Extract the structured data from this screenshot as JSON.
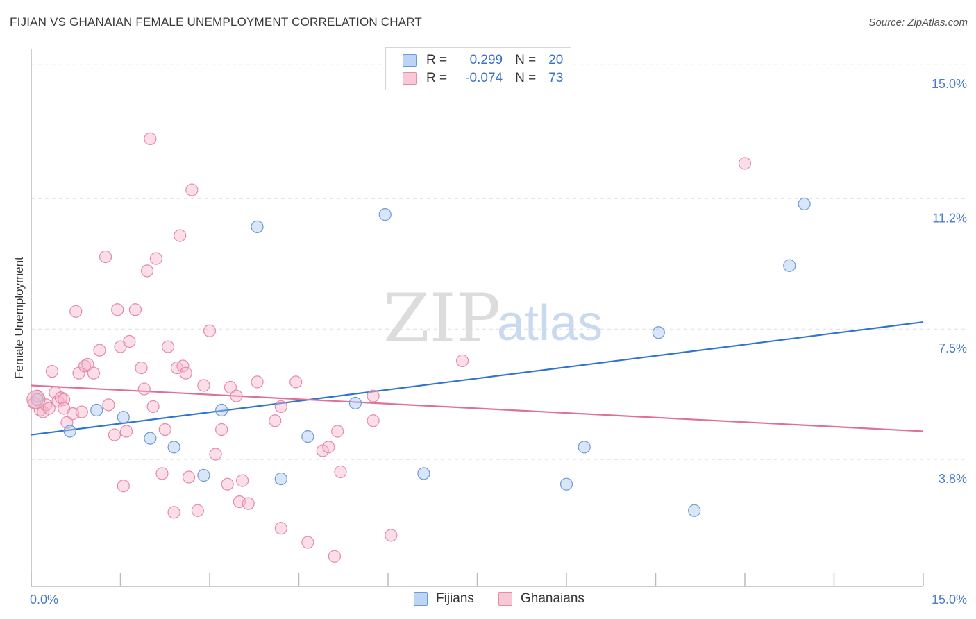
{
  "header": {
    "title": "FIJIAN VS GHANAIAN FEMALE UNEMPLOYMENT CORRELATION CHART",
    "source": "Source: ZipAtlas.com"
  },
  "legend": {
    "rows": [
      {
        "r_label": "R =",
        "r_value": "0.299",
        "n_label": "N =",
        "n_value": "20",
        "color": "#a9c8f0"
      },
      {
        "r_label": "R =",
        "r_value": "-0.074",
        "n_label": "N =",
        "n_value": "73",
        "color": "#f7b6ca"
      }
    ]
  },
  "watermark": {
    "zip": "ZIP",
    "atlas": "atlas"
  },
  "colors": {
    "fijians_fill": "#a9c8f0",
    "fijians_stroke": "#6a9ad9",
    "fijians_line": "#2f74d0",
    "ghanaians_fill": "#f7b6ca",
    "ghanaians_stroke": "#e58aa8",
    "ghanaians_line": "#e0709a",
    "tick_text": "#4a7cc9",
    "grid": "#dddddd"
  },
  "chart_data": {
    "type": "scatter",
    "title": "FIJIAN VS GHANAIAN FEMALE UNEMPLOYMENT CORRELATION CHART",
    "xlabel": "",
    "ylabel": "Female Unemployment",
    "xlim": [
      0,
      15
    ],
    "ylim": [
      0.2,
      15.3
    ],
    "x_tick_labels": [
      {
        "value": 0,
        "label": "0.0%"
      },
      {
        "value": 15,
        "label": "15.0%"
      }
    ],
    "y_ticks": [
      {
        "value": 3.8,
        "label": "3.8%"
      },
      {
        "value": 7.5,
        "label": "7.5%"
      },
      {
        "value": 11.2,
        "label": "11.2%"
      },
      {
        "value": 15.0,
        "label": "15.0%"
      }
    ],
    "grid": "horizontal dashed",
    "legend_position": "bottom",
    "series": [
      {
        "name": "Fijians",
        "points": [
          [
            0.1,
            5.5
          ],
          [
            0.65,
            4.6
          ],
          [
            1.1,
            5.2
          ],
          [
            1.55,
            5.0
          ],
          [
            2.0,
            4.4
          ],
          [
            2.4,
            4.15
          ],
          [
            2.9,
            3.35
          ],
          [
            3.2,
            5.2
          ],
          [
            3.8,
            10.4
          ],
          [
            4.2,
            3.25
          ],
          [
            4.65,
            4.45
          ],
          [
            5.45,
            5.4
          ],
          [
            5.95,
            10.75
          ],
          [
            6.6,
            3.4
          ],
          [
            9.0,
            3.1
          ],
          [
            9.3,
            4.15
          ],
          [
            10.55,
            7.4
          ],
          [
            11.15,
            2.35
          ],
          [
            12.75,
            9.3
          ],
          [
            13.0,
            11.05
          ]
        ],
        "trend": {
          "x": [
            0,
            15
          ],
          "y": [
            4.5,
            7.7
          ]
        }
      },
      {
        "name": "Ghanaians",
        "points": [
          [
            0.05,
            5.4
          ],
          [
            0.1,
            5.6
          ],
          [
            0.15,
            5.2
          ],
          [
            0.2,
            5.15
          ],
          [
            0.25,
            5.35
          ],
          [
            0.35,
            6.3
          ],
          [
            0.4,
            5.7
          ],
          [
            0.45,
            5.45
          ],
          [
            0.5,
            5.55
          ],
          [
            0.55,
            5.5
          ],
          [
            0.6,
            4.85
          ],
          [
            0.7,
            5.1
          ],
          [
            0.75,
            8.0
          ],
          [
            0.8,
            6.25
          ],
          [
            0.85,
            5.15
          ],
          [
            0.9,
            6.45
          ],
          [
            0.95,
            6.5
          ],
          [
            1.05,
            6.25
          ],
          [
            1.15,
            6.9
          ],
          [
            1.25,
            9.55
          ],
          [
            1.3,
            5.35
          ],
          [
            1.4,
            4.5
          ],
          [
            1.45,
            8.05
          ],
          [
            1.5,
            7.0
          ],
          [
            1.55,
            3.05
          ],
          [
            1.6,
            4.6
          ],
          [
            1.65,
            7.15
          ],
          [
            1.75,
            8.05
          ],
          [
            1.85,
            6.4
          ],
          [
            1.9,
            5.8
          ],
          [
            1.95,
            9.15
          ],
          [
            2.0,
            12.9
          ],
          [
            2.05,
            5.3
          ],
          [
            2.1,
            9.5
          ],
          [
            2.2,
            3.4
          ],
          [
            2.25,
            4.65
          ],
          [
            2.3,
            7.0
          ],
          [
            2.4,
            2.3
          ],
          [
            2.45,
            6.4
          ],
          [
            2.5,
            10.15
          ],
          [
            2.55,
            6.45
          ],
          [
            2.6,
            6.25
          ],
          [
            2.65,
            3.3
          ],
          [
            2.7,
            11.45
          ],
          [
            2.8,
            2.35
          ],
          [
            2.9,
            5.9
          ],
          [
            3.0,
            7.45
          ],
          [
            3.1,
            3.95
          ],
          [
            3.2,
            4.65
          ],
          [
            3.3,
            3.1
          ],
          [
            3.35,
            5.85
          ],
          [
            3.45,
            5.6
          ],
          [
            3.5,
            2.6
          ],
          [
            3.55,
            3.2
          ],
          [
            3.65,
            2.55
          ],
          [
            3.8,
            6.0
          ],
          [
            4.1,
            4.9
          ],
          [
            4.2,
            5.3
          ],
          [
            4.2,
            1.85
          ],
          [
            4.45,
            6.0
          ],
          [
            4.65,
            1.45
          ],
          [
            4.9,
            4.05
          ],
          [
            5.0,
            4.15
          ],
          [
            5.1,
            1.05
          ],
          [
            5.15,
            4.6
          ],
          [
            5.2,
            3.45
          ],
          [
            5.75,
            5.6
          ],
          [
            5.75,
            4.9
          ],
          [
            6.05,
            1.65
          ],
          [
            7.25,
            6.6
          ],
          [
            12.0,
            12.2
          ],
          [
            0.3,
            5.25
          ],
          [
            0.55,
            5.25
          ]
        ],
        "trend": {
          "x": [
            0,
            15
          ],
          "y": [
            5.9,
            4.6
          ]
        }
      }
    ]
  }
}
